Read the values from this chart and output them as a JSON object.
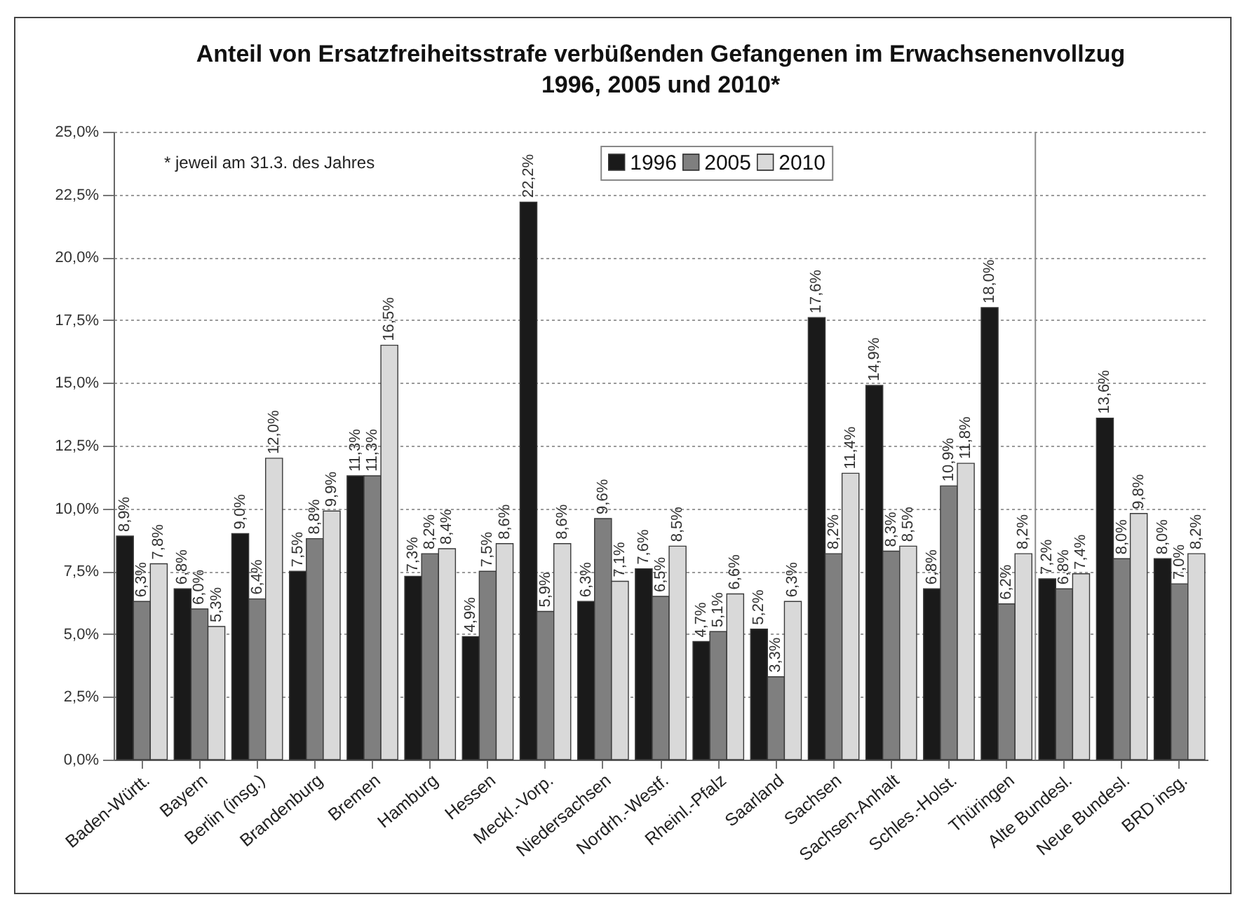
{
  "chart_data": {
    "type": "bar",
    "title": "Anteil von Ersatzfreiheitsstrafe verbüßenden Gefangenen im Erwachsenenvollzug",
    "subtitle": "1996, 2005 und 2010*",
    "annotations": [
      "* jeweil am 31.3. des Jahres"
    ],
    "categories": [
      "Baden-Württ.",
      "Bayern",
      "Berlin (insg.)",
      "Brandenburg",
      "Bremen",
      "Hamburg",
      "Hessen",
      "Meckl.-Vorp.",
      "Niedersachsen",
      "Nordrh.-Westf.",
      "Rheinl.-Pfalz",
      "Saarland",
      "Sachsen",
      "Sachsen-Anhalt",
      "Schles.-Holst.",
      "Thüringen",
      "Alte Bundesl.",
      "Neue Bundesl.",
      "BRD insg."
    ],
    "series": [
      {
        "name": "1996",
        "color": "#1a1a1a",
        "values": [
          8.9,
          6.8,
          9.0,
          7.5,
          11.3,
          7.3,
          4.9,
          22.2,
          6.3,
          7.6,
          4.7,
          5.2,
          17.6,
          14.9,
          6.8,
          18.0,
          7.2,
          13.6,
          8.0
        ],
        "value_labels": [
          "8,9%",
          "6,8%",
          "9,0%",
          "7,5%",
          "11,3%",
          "7,3%",
          "4,9%",
          "22,2%",
          "6,3%",
          "7,6%",
          "4,7%",
          "5,2%",
          "17,6%",
          "14,9%",
          "6,8%",
          "18,0%",
          "7,2%",
          "13,6%",
          "8,0%"
        ]
      },
      {
        "name": "2005",
        "color": "#7f7f7f",
        "values": [
          6.3,
          6.0,
          6.4,
          8.8,
          11.3,
          8.2,
          7.5,
          5.9,
          9.6,
          6.5,
          5.1,
          3.3,
          8.2,
          8.3,
          10.9,
          6.2,
          6.8,
          8.0,
          7.0
        ],
        "value_labels": [
          "6,3%",
          "6,0%",
          "6,4%",
          "8,8%",
          "11,3%",
          "8,2%",
          "7,5%",
          "5,9%",
          "9,6%",
          "6,5%",
          "5,1%",
          "3,3%",
          "8,2%",
          "8,3%",
          "10,9%",
          "6,2%",
          "6,8%",
          "8,0%",
          "7,0%"
        ]
      },
      {
        "name": "2010",
        "color": "#d9d9d9",
        "values": [
          7.8,
          5.3,
          12.0,
          9.9,
          16.5,
          8.4,
          8.6,
          8.6,
          7.1,
          8.5,
          6.6,
          6.3,
          11.4,
          8.5,
          11.8,
          8.2,
          7.4,
          9.8,
          8.2
        ],
        "value_labels": [
          "7,8%",
          "5,3%",
          "12,0%",
          "9,9%",
          "16,5%",
          "8,4%",
          "8,6%",
          "8,6%",
          "7,1%",
          "8,5%",
          "6,6%",
          "6,3%",
          "11,4%",
          "8,5%",
          "11,8%",
          "8,2%",
          "7,4%",
          "9,8%",
          "8,2%"
        ]
      }
    ],
    "ylim": [
      0,
      25
    ],
    "yticks": [
      {
        "value": 0,
        "label": "0,0%"
      },
      {
        "value": 2.5,
        "label": "2,5%"
      },
      {
        "value": 5,
        "label": "5,0%"
      },
      {
        "value": 7.5,
        "label": "7,5%"
      },
      {
        "value": 10,
        "label": "10,0%"
      },
      {
        "value": 12.5,
        "label": "12,5%"
      },
      {
        "value": 15,
        "label": "15,0%"
      },
      {
        "value": 17.5,
        "label": "17,5%"
      },
      {
        "value": 20,
        "label": "20,0%"
      },
      {
        "value": 22.5,
        "label": "22,5%"
      },
      {
        "value": 25,
        "label": "25,0%"
      }
    ],
    "ref_lines": [
      {
        "axis": "x",
        "value": "Alte Bundesl.",
        "color": "#8a8a8a"
      }
    ],
    "grid": "y",
    "legend": "top"
  }
}
